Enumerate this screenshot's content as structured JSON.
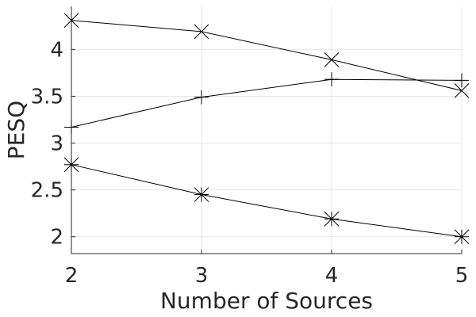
{
  "chart_data": {
    "type": "line",
    "xlabel": "Number of Sources",
    "ylabel": "PESQ",
    "xlim": [
      2,
      5
    ],
    "ylim": [
      1.82,
      4.46
    ],
    "x_ticks": [
      2,
      3,
      4,
      5
    ],
    "y_ticks": [
      2,
      2.5,
      3,
      3.5,
      4
    ],
    "grid": true,
    "x": [
      2,
      3,
      4,
      5
    ],
    "series": [
      {
        "marker": "x-cross",
        "values": [
          4.31,
          4.19,
          3.89,
          3.56
        ]
      },
      {
        "marker": "plus",
        "values": [
          3.17,
          3.49,
          3.68,
          3.67
        ]
      },
      {
        "marker": "asterisk",
        "values": [
          2.77,
          2.45,
          2.19,
          2.0
        ]
      }
    ]
  }
}
